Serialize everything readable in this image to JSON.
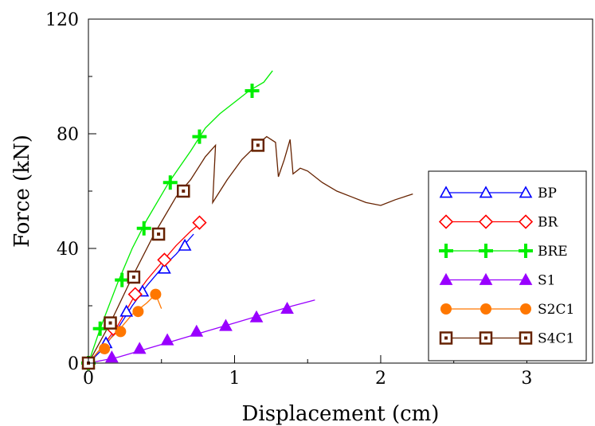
{
  "chart_data": {
    "type": "line",
    "title": "",
    "xlabel": "Displacement (cm)",
    "ylabel": "Force (kN)",
    "xlim": [
      0,
      3.45
    ],
    "ylim": [
      0,
      120
    ],
    "x_ticks": [
      0,
      1,
      2,
      3
    ],
    "x_tick_labels": [
      "0",
      "1",
      "2",
      "3"
    ],
    "y_ticks": [
      0,
      40,
      80,
      120
    ],
    "y_tick_labels": [
      "0",
      "40",
      "80",
      "120"
    ],
    "grid": false,
    "legend_position": "right",
    "series": [
      {
        "name": "BP",
        "color": "#0000ff",
        "marker": "open-triangle",
        "line": [
          [
            0,
            0
          ],
          [
            0.1,
            5
          ],
          [
            0.2,
            12
          ],
          [
            0.3,
            20
          ],
          [
            0.4,
            27
          ],
          [
            0.5,
            33
          ],
          [
            0.6,
            38
          ],
          [
            0.72,
            45
          ]
        ],
        "markers": [
          [
            0,
            0
          ],
          [
            0.12,
            7
          ],
          [
            0.26,
            18
          ],
          [
            0.37,
            25
          ],
          [
            0.52,
            33
          ],
          [
            0.66,
            41
          ]
        ]
      },
      {
        "name": "BR",
        "color": "#ff0000",
        "marker": "open-diamond",
        "line": [
          [
            0,
            0
          ],
          [
            0.1,
            6
          ],
          [
            0.2,
            13
          ],
          [
            0.3,
            22
          ],
          [
            0.4,
            29
          ],
          [
            0.5,
            35
          ],
          [
            0.6,
            41
          ],
          [
            0.7,
            46
          ],
          [
            0.77,
            49
          ]
        ],
        "markers": [
          [
            0,
            0
          ],
          [
            0.17,
            12
          ],
          [
            0.32,
            24
          ],
          [
            0.52,
            36
          ],
          [
            0.76,
            49
          ]
        ]
      },
      {
        "name": "BRE",
        "color": "#00ee00",
        "marker": "plus",
        "line": [
          [
            0,
            0
          ],
          [
            0.08,
            12
          ],
          [
            0.2,
            28
          ],
          [
            0.3,
            40
          ],
          [
            0.4,
            50
          ],
          [
            0.55,
            63
          ],
          [
            0.7,
            74
          ],
          [
            0.8,
            82
          ],
          [
            0.9,
            87
          ],
          [
            1.0,
            91
          ],
          [
            1.1,
            95
          ],
          [
            1.2,
            98
          ],
          [
            1.26,
            102
          ]
        ],
        "markers": [
          [
            0,
            0
          ],
          [
            0.08,
            12
          ],
          [
            0.23,
            29
          ],
          [
            0.38,
            47
          ],
          [
            0.56,
            63
          ],
          [
            0.76,
            79
          ],
          [
            1.12,
            95
          ]
        ]
      },
      {
        "name": "S1",
        "color": "#9900ff",
        "marker": "filled-triangle",
        "line": [
          [
            0,
            0
          ],
          [
            0.2,
            2
          ],
          [
            0.4,
            5
          ],
          [
            0.6,
            8
          ],
          [
            0.8,
            11
          ],
          [
            1.0,
            14
          ],
          [
            1.2,
            17
          ],
          [
            1.4,
            20
          ],
          [
            1.55,
            22
          ]
        ],
        "markers": [
          [
            0,
            0
          ],
          [
            0.16,
            2
          ],
          [
            0.35,
            5
          ],
          [
            0.54,
            8
          ],
          [
            0.74,
            11
          ],
          [
            0.94,
            13
          ],
          [
            1.15,
            16
          ],
          [
            1.36,
            19
          ]
        ]
      },
      {
        "name": "S2C1",
        "color": "#ff7700",
        "marker": "filled-circle",
        "line": [
          [
            0,
            0
          ],
          [
            0.1,
            6
          ],
          [
            0.2,
            11
          ],
          [
            0.3,
            17
          ],
          [
            0.4,
            21
          ],
          [
            0.46,
            24
          ],
          [
            0.5,
            19
          ]
        ],
        "markers": [
          [
            0,
            0
          ],
          [
            0.11,
            5
          ],
          [
            0.22,
            11
          ],
          [
            0.34,
            18
          ],
          [
            0.46,
            24
          ]
        ]
      },
      {
        "name": "S4C1",
        "color": "#662200",
        "marker": "open-square",
        "line": [
          [
            0,
            0
          ],
          [
            0.15,
            14
          ],
          [
            0.3,
            30
          ],
          [
            0.45,
            45
          ],
          [
            0.6,
            58
          ],
          [
            0.7,
            64
          ],
          [
            0.8,
            72
          ],
          [
            0.87,
            76
          ],
          [
            0.85,
            56
          ],
          [
            0.95,
            64
          ],
          [
            1.05,
            71
          ],
          [
            1.15,
            76
          ],
          [
            1.22,
            79
          ],
          [
            1.28,
            77
          ],
          [
            1.3,
            65
          ],
          [
            1.34,
            71
          ],
          [
            1.38,
            78
          ],
          [
            1.4,
            66
          ],
          [
            1.45,
            68
          ],
          [
            1.5,
            67
          ],
          [
            1.6,
            63
          ],
          [
            1.7,
            60
          ],
          [
            1.8,
            58
          ],
          [
            1.9,
            56
          ],
          [
            2.0,
            55
          ],
          [
            2.1,
            57
          ],
          [
            2.22,
            59
          ]
        ],
        "markers": [
          [
            0,
            0
          ],
          [
            0.15,
            14
          ],
          [
            0.31,
            30
          ],
          [
            0.48,
            45
          ],
          [
            0.65,
            60
          ],
          [
            1.16,
            76
          ]
        ]
      }
    ]
  }
}
